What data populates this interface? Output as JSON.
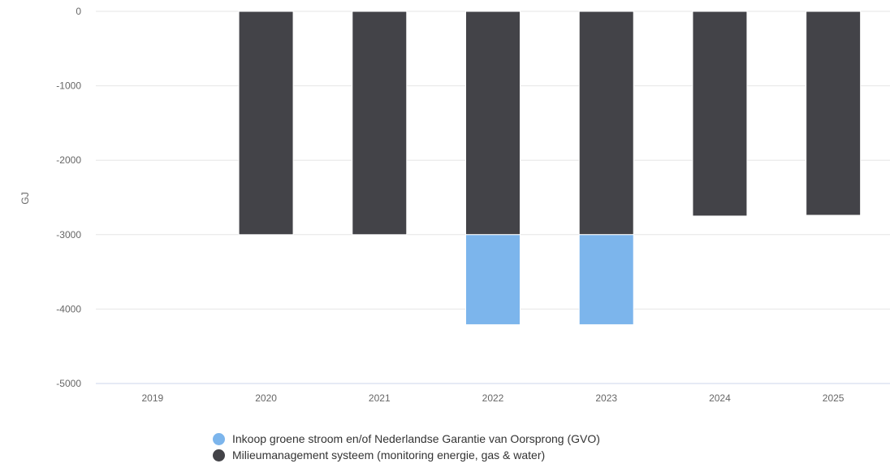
{
  "chart_data": {
    "type": "bar",
    "stacked": true,
    "categories": [
      "2019",
      "2020",
      "2021",
      "2022",
      "2023",
      "2024",
      "2025"
    ],
    "series": [
      {
        "name": "Milieumanagement systeem (monitoring energie, gas & water)",
        "color": "#434348",
        "values": [
          0,
          -3000,
          -3000,
          -3000,
          -3000,
          -2750,
          -2740
        ]
      },
      {
        "name": "Inkoop groene stroom en/of Nederlandse Garantie van Oorsprong (GVO)",
        "color": "#7cb5ec",
        "values": [
          0,
          0,
          0,
          -1210,
          -1210,
          0,
          0
        ]
      }
    ],
    "ylabel": "GJ",
    "xlabel": "",
    "ylim": [
      -5000,
      0
    ],
    "yticks": [
      "0",
      "-1000",
      "-2000",
      "-3000",
      "-4000",
      "-5000"
    ],
    "grid": true,
    "legend_position": "bottom",
    "legend_order": [
      "Inkoop groene stroom en/of Nederlandse Garantie van Oorsprong (GVO)",
      "Milieumanagement systeem (monitoring energie, gas & water)"
    ]
  }
}
